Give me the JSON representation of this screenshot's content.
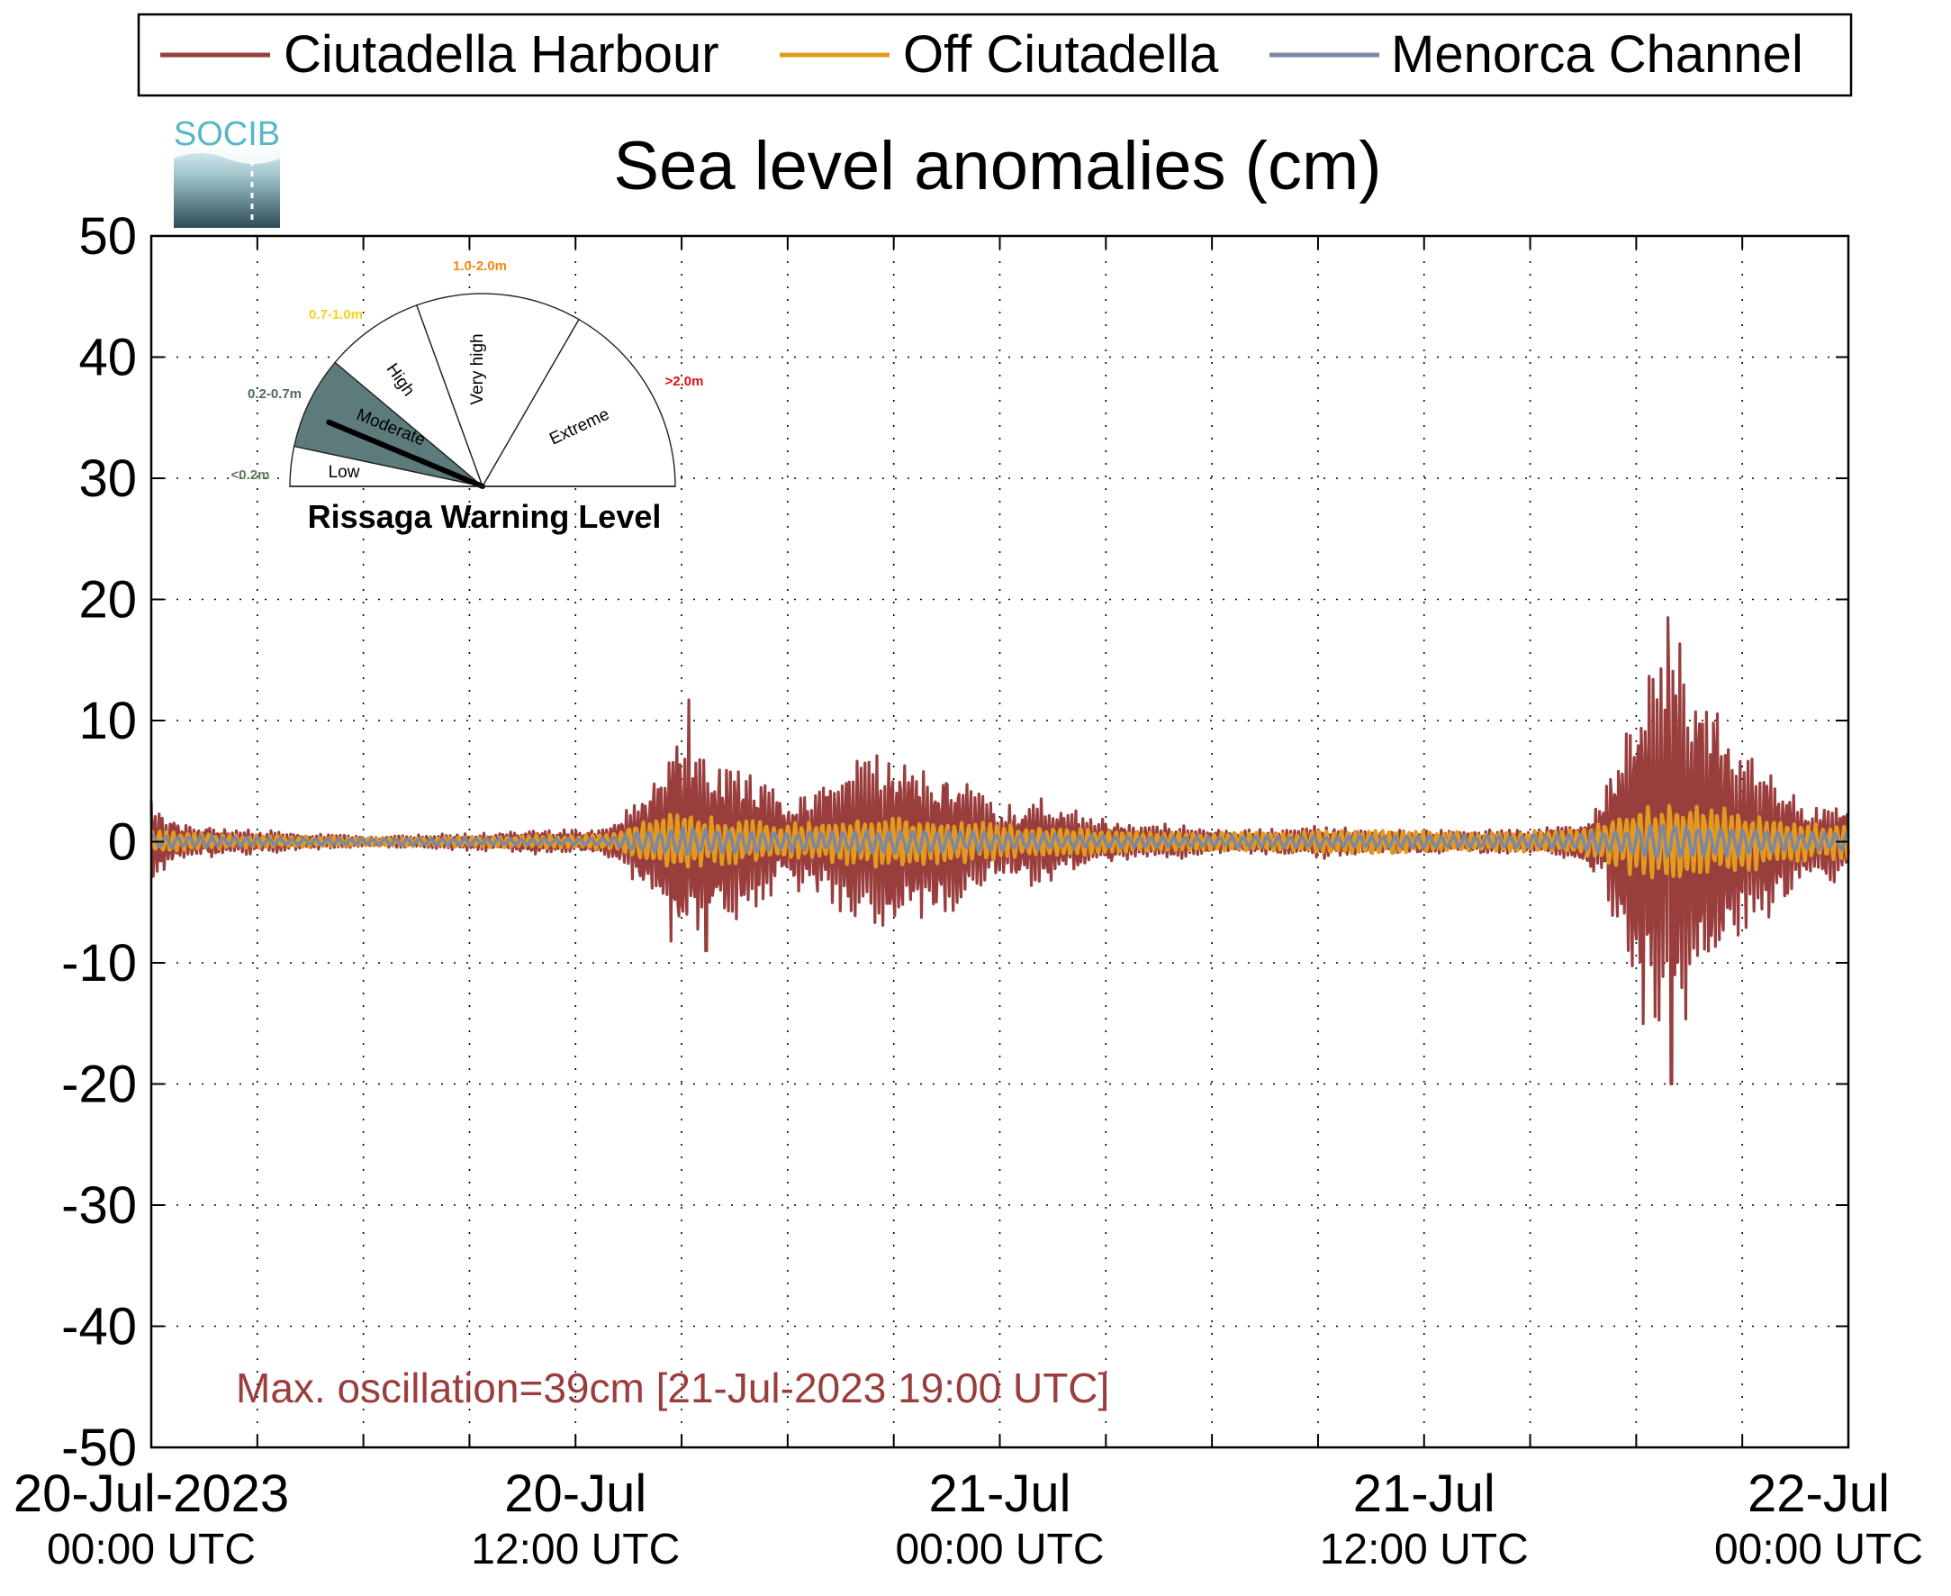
{
  "legend": {
    "placement": "top",
    "entries": [
      {
        "label": "Ciutadella Harbour",
        "color": "#993d3d"
      },
      {
        "label": "Off Ciutadella",
        "color": "#e39a1f"
      },
      {
        "label": "Menorca Channel",
        "color": "#7b88a3"
      }
    ]
  },
  "logo": {
    "text": "SOCIB"
  },
  "gauge": {
    "title": "Rissaga Warning Level",
    "sectors": [
      {
        "name": "Low",
        "range": "<0.2m",
        "range_color": "#5a7a5a"
      },
      {
        "name": "Moderate",
        "range": "0.2-0.7m",
        "range_color": "#4b6a6a",
        "active": true,
        "fill": "#5d7b7b"
      },
      {
        "name": "High",
        "range": "0.7-1.0m",
        "range_color": "#f2d21e"
      },
      {
        "name": "Very high",
        "range": "1.0-2.0m",
        "range_color": "#f08a12"
      },
      {
        "name": "Extreme",
        "range": ">2.0m",
        "range_color": "#e01010"
      }
    ],
    "needle_value_m": 0.39
  },
  "annotation": {
    "text": "Max. oscillation=39cm [21-Jul-2023 19:00 UTC]",
    "color": "#993d3d"
  },
  "chart_data": {
    "type": "line",
    "title": "Sea level anomalies (cm)",
    "xlabel": "",
    "ylabel": "",
    "ylim": [
      -50,
      50
    ],
    "xlim_hours": [
      0,
      48
    ],
    "grid": true,
    "y_ticks": [
      "50",
      "40",
      "30",
      "20",
      "10",
      "0",
      "-10",
      "-20",
      "-30",
      "-40",
      "-50"
    ],
    "x_tick_labels": [
      {
        "hour": 0,
        "line1": "20-Jul-2023",
        "line2": "00:00 UTC"
      },
      {
        "hour": 12,
        "line1": "20-Jul",
        "line2": "12:00 UTC"
      },
      {
        "hour": 24,
        "line1": "21-Jul",
        "line2": "00:00 UTC"
      },
      {
        "hour": 36,
        "line1": "21-Jul",
        "line2": "12:00 UTC"
      },
      {
        "hour": 48,
        "line1": "22-Jul",
        "line2": "00:00 UTC"
      }
    ],
    "series": [
      {
        "name": "Ciutadella Harbour",
        "color": "#993d3d",
        "envelope": [
          [
            0,
            3.5
          ],
          [
            1,
            1.5
          ],
          [
            2,
            1.2
          ],
          [
            3,
            1.0
          ],
          [
            4,
            0.8
          ],
          [
            5,
            0.6
          ],
          [
            6,
            0.5
          ],
          [
            7,
            0.5
          ],
          [
            8,
            0.7
          ],
          [
            9,
            0.8
          ],
          [
            10,
            0.8
          ],
          [
            11,
            1.2
          ],
          [
            12,
            1.0
          ],
          [
            13,
            1.5
          ],
          [
            14,
            5
          ],
          [
            15,
            10
          ],
          [
            16,
            8
          ],
          [
            17,
            6
          ],
          [
            18,
            4
          ],
          [
            19,
            5
          ],
          [
            20,
            7
          ],
          [
            21,
            8
          ],
          [
            22,
            7
          ],
          [
            23,
            6
          ],
          [
            24,
            3
          ],
          [
            25,
            4
          ],
          [
            26,
            3
          ],
          [
            27,
            2
          ],
          [
            28,
            1.5
          ],
          [
            29,
            1.5
          ],
          [
            30,
            1.0
          ],
          [
            31,
            1.0
          ],
          [
            32,
            1.2
          ],
          [
            33,
            1.5
          ],
          [
            34,
            1.2
          ],
          [
            35,
            1.0
          ],
          [
            36,
            1.0
          ],
          [
            37,
            1.0
          ],
          [
            38,
            1.0
          ],
          [
            39,
            1.0
          ],
          [
            40,
            1.5
          ],
          [
            41,
            3
          ],
          [
            42,
            15
          ],
          [
            43,
            18
          ],
          [
            44,
            14
          ],
          [
            45,
            8
          ],
          [
            46,
            6
          ],
          [
            47,
            3
          ],
          [
            48,
            4
          ]
        ],
        "peaks": [
          [
            15.2,
            11.7
          ],
          [
            15.7,
            -9
          ],
          [
            42.9,
            18.5
          ],
          [
            43.0,
            -20
          ]
        ]
      },
      {
        "name": "Off Ciutadella",
        "color": "#e39a1f",
        "envelope": [
          [
            0,
            1.0
          ],
          [
            2,
            0.6
          ],
          [
            4,
            0.5
          ],
          [
            6,
            0.4
          ],
          [
            8,
            0.4
          ],
          [
            10,
            0.5
          ],
          [
            12,
            0.6
          ],
          [
            13,
            0.7
          ],
          [
            14,
            2.0
          ],
          [
            15,
            2.5
          ],
          [
            16,
            2.0
          ],
          [
            17,
            1.8
          ],
          [
            18,
            1.5
          ],
          [
            19,
            1.8
          ],
          [
            20,
            2.0
          ],
          [
            21,
            2.2
          ],
          [
            22,
            2.0
          ],
          [
            23,
            1.8
          ],
          [
            24,
            1.5
          ],
          [
            25,
            1.3
          ],
          [
            26,
            1.2
          ],
          [
            27,
            1.0
          ],
          [
            28,
            0.9
          ],
          [
            30,
            0.8
          ],
          [
            32,
            0.8
          ],
          [
            34,
            1.0
          ],
          [
            36,
            0.9
          ],
          [
            38,
            0.8
          ],
          [
            40,
            1.0
          ],
          [
            41,
            1.5
          ],
          [
            42,
            3
          ],
          [
            43,
            3.5
          ],
          [
            44,
            3
          ],
          [
            45,
            2.5
          ],
          [
            46,
            2
          ],
          [
            47,
            1.5
          ],
          [
            48,
            1.5
          ]
        ],
        "peaks": []
      },
      {
        "name": "Menorca Channel",
        "color": "#7b88a3",
        "envelope": [
          [
            0,
            0.6
          ],
          [
            4,
            0.3
          ],
          [
            8,
            0.3
          ],
          [
            12,
            0.3
          ],
          [
            13,
            0.4
          ],
          [
            14,
            1.0
          ],
          [
            15,
            1.2
          ],
          [
            16,
            1.0
          ],
          [
            18,
            0.8
          ],
          [
            20,
            1.0
          ],
          [
            22,
            1.0
          ],
          [
            24,
            0.8
          ],
          [
            26,
            0.6
          ],
          [
            28,
            0.5
          ],
          [
            32,
            0.5
          ],
          [
            36,
            0.5
          ],
          [
            40,
            0.6
          ],
          [
            42,
            1.3
          ],
          [
            43,
            1.5
          ],
          [
            45,
            1.2
          ],
          [
            47,
            0.8
          ],
          [
            48,
            0.8
          ]
        ],
        "peaks": []
      }
    ]
  }
}
